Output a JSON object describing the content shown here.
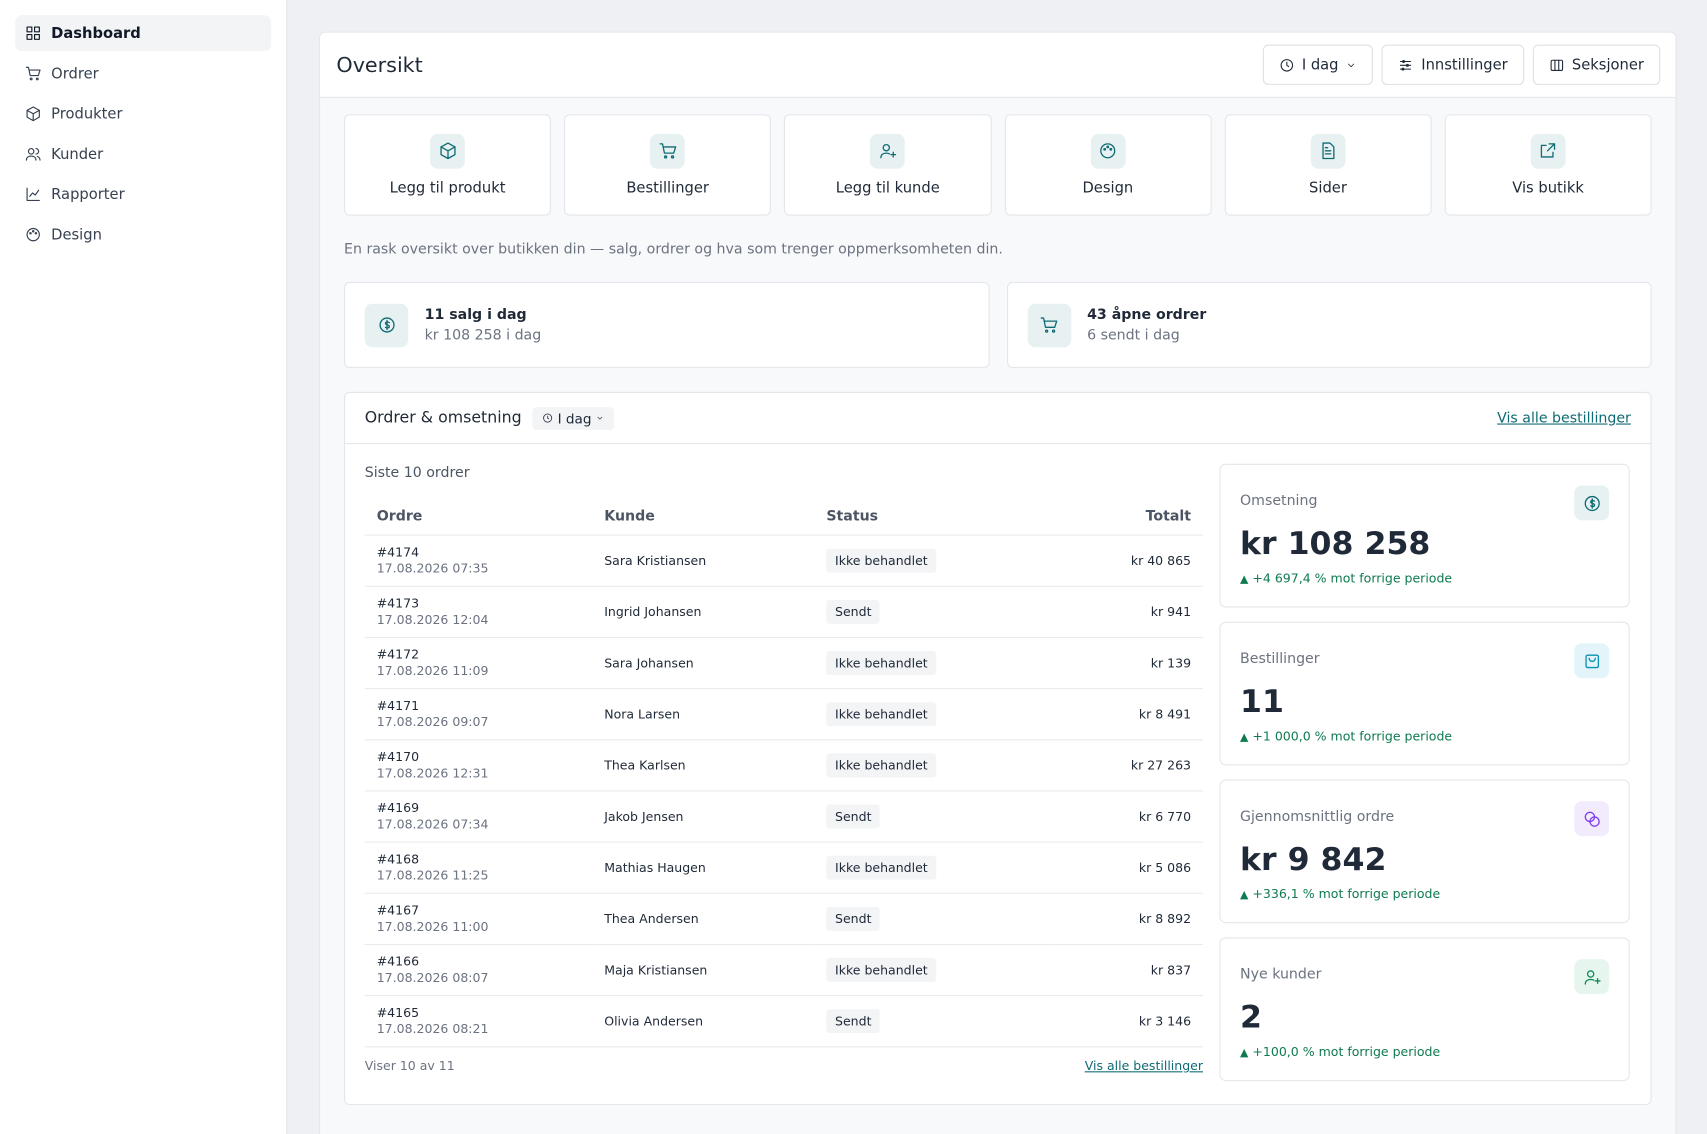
{
  "sidebar": {
    "nav": [
      "Dashboard",
      "Ordrer",
      "Produkter",
      "Kunder",
      "Rapporter",
      "Design"
    ]
  },
  "header": {
    "title": "Oversikt",
    "buttons": [
      "I dag",
      "Innstillinger",
      "Seksjoner"
    ]
  },
  "quick_actions": [
    "Legg til produkt",
    "Bestillinger",
    "Legg til kunde",
    "Design",
    "Sider",
    "Vis butikk"
  ],
  "description": "En rask oversikt over butikken din — salg, ordrer og hva som trenger oppmerksomheten din.",
  "summary": [
    {
      "title": "11 salg i dag",
      "subtitle": "kr 108 258 i dag"
    },
    {
      "title": "43 åpne ordrer",
      "subtitle": "6 sendt i dag"
    }
  ],
  "orders": {
    "title": "Ordrer & omsetning",
    "period": "I dag",
    "link": "Vis alle bestillinger",
    "caption": "Siste 10 ordrer",
    "table": {
      "columns": [
        "Ordre",
        "Kunde",
        "Status",
        "Totalt"
      ],
      "rows": [
        [
          "#4174",
          "17.08.2026 07:35",
          "Sara Kristiansen",
          "Ikke behandlet",
          "kr 40 865"
        ],
        [
          "#4173",
          "17.08.2026 12:04",
          "Ingrid Johansen",
          "Sendt",
          "kr 941"
        ],
        [
          "#4172",
          "17.08.2026 11:09",
          "Sara Johansen",
          "Ikke behandlet",
          "kr 139"
        ],
        [
          "#4171",
          "17.08.2026 09:07",
          "Nora Larsen",
          "Ikke behandlet",
          "kr 8 491"
        ],
        [
          "#4170",
          "17.08.2026 12:31",
          "Thea Karlsen",
          "Ikke behandlet",
          "kr 27 263"
        ],
        [
          "#4169",
          "17.08.2026 07:34",
          "Jakob Jensen",
          "Sendt",
          "kr 6 770"
        ],
        [
          "#4168",
          "17.08.2026 11:25",
          "Mathias Haugen",
          "Ikke behandlet",
          "kr 5 086"
        ],
        [
          "#4167",
          "17.08.2026 11:00",
          "Thea Andersen",
          "Sendt",
          "kr 8 892"
        ],
        [
          "#4166",
          "17.08.2026 08:07",
          "Maja Kristiansen",
          "Ikke behandlet",
          "kr 837"
        ],
        [
          "#4165",
          "17.08.2026 08:21",
          "Olivia Andersen",
          "Sendt",
          "kr 3 146"
        ]
      ]
    },
    "footer": "Viser 10 av 11",
    "footer_link": "Vis alle bestillinger"
  },
  "stats": [
    {
      "label": "Omsetning",
      "value": "kr 108 258",
      "change": "+4 697,4 % mot forrige periode"
    },
    {
      "label": "Bestillinger",
      "value": "11",
      "change": "+1 000,0 % mot forrige periode"
    },
    {
      "label": "Gjennomsnittlig ordre",
      "value": "kr 9 842",
      "change": "+336,1 % mot forrige periode"
    },
    {
      "label": "Nye kunder",
      "value": "2",
      "change": "+100,0 % mot forrige periode"
    }
  ]
}
